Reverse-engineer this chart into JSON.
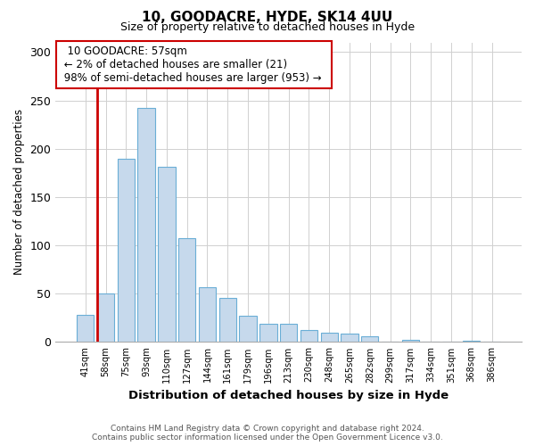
{
  "title1": "10, GOODACRE, HYDE, SK14 4UU",
  "title2": "Size of property relative to detached houses in Hyde",
  "xlabel": "Distribution of detached houses by size in Hyde",
  "ylabel": "Number of detached properties",
  "categories": [
    "41sqm",
    "58sqm",
    "75sqm",
    "93sqm",
    "110sqm",
    "127sqm",
    "144sqm",
    "161sqm",
    "179sqm",
    "196sqm",
    "213sqm",
    "230sqm",
    "248sqm",
    "265sqm",
    "282sqm",
    "299sqm",
    "317sqm",
    "334sqm",
    "351sqm",
    "368sqm",
    "386sqm"
  ],
  "values": [
    28,
    50,
    190,
    242,
    181,
    107,
    57,
    46,
    27,
    19,
    19,
    12,
    10,
    9,
    6,
    0,
    2,
    0,
    0,
    1,
    0
  ],
  "bar_color": "#c6d9ec",
  "bar_edge_color": "#6aaed6",
  "ylim": [
    0,
    310
  ],
  "yticks": [
    0,
    50,
    100,
    150,
    200,
    250,
    300
  ],
  "red_line_bar_index": 1,
  "red_line_color": "#cc0000",
  "annotation_text_line1": "10 GOODACRE: 57sqm",
  "annotation_text_line2": "← 2% of detached houses are smaller (21)",
  "annotation_text_line3": "98% of semi-detached houses are larger (953) →",
  "footer1": "Contains HM Land Registry data © Crown copyright and database right 2024.",
  "footer2": "Contains public sector information licensed under the Open Government Licence v3.0.",
  "background_color": "#ffffff",
  "grid_color": "#d0d0d0"
}
